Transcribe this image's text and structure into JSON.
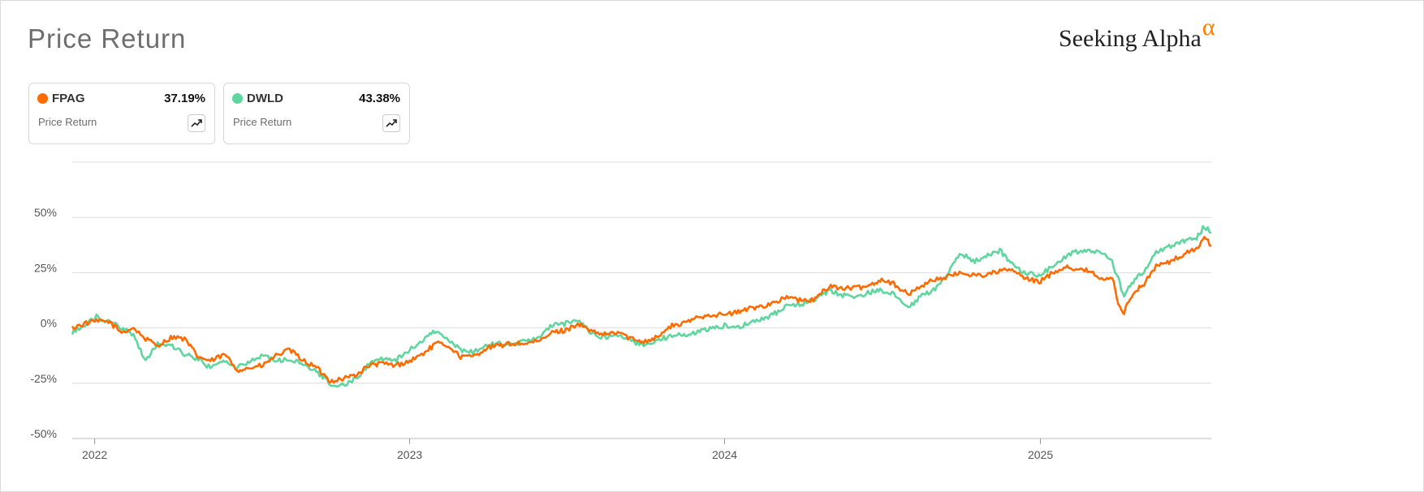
{
  "header": {
    "title": "Price Return",
    "logo_text": "Seeking Alpha",
    "logo_symbol": "α"
  },
  "legend_cards": [
    {
      "ticker": "FPAG",
      "value": "37.19%",
      "label": "Price Return",
      "color": "#ff6b00",
      "icon": "trend-up-icon"
    },
    {
      "ticker": "DWLD",
      "value": "43.38%",
      "label": "Price Return",
      "color": "#5fd6a0",
      "icon": "trend-up-icon"
    }
  ],
  "chart_data": {
    "type": "line",
    "title": "Price Return",
    "xlabel": "",
    "ylabel": "",
    "xlim": [
      "2021-12-06",
      "2025-07-18"
    ],
    "ylim": [
      -50,
      75
    ],
    "yticks": [
      -50,
      -25,
      0,
      25,
      50
    ],
    "ytick_labels": [
      "-50%",
      "-25%",
      "0%",
      "25%",
      "50%"
    ],
    "xticks": [
      "2022-01-01",
      "2023-01-01",
      "2024-01-01",
      "2025-01-01"
    ],
    "xtick_labels": [
      "2022",
      "2023",
      "2024",
      "2025"
    ],
    "grid": true,
    "series": [
      {
        "name": "FPAG",
        "color": "#ff6b00",
        "points": [
          [
            "2021-12-06",
            0
          ],
          [
            "2021-12-20",
            2
          ],
          [
            "2022-01-03",
            3
          ],
          [
            "2022-01-17",
            3
          ],
          [
            "2022-02-01",
            -2
          ],
          [
            "2022-02-15",
            0
          ],
          [
            "2022-03-01",
            -5
          ],
          [
            "2022-03-15",
            -8
          ],
          [
            "2022-04-01",
            -4
          ],
          [
            "2022-04-15",
            -5
          ],
          [
            "2022-05-01",
            -13
          ],
          [
            "2022-05-15",
            -15
          ],
          [
            "2022-06-01",
            -12
          ],
          [
            "2022-06-15",
            -19
          ],
          [
            "2022-07-01",
            -18
          ],
          [
            "2022-07-15",
            -17
          ],
          [
            "2022-08-01",
            -12
          ],
          [
            "2022-08-15",
            -10
          ],
          [
            "2022-09-01",
            -15
          ],
          [
            "2022-09-15",
            -18
          ],
          [
            "2022-10-01",
            -24
          ],
          [
            "2022-10-15",
            -23
          ],
          [
            "2022-11-01",
            -21
          ],
          [
            "2022-11-15",
            -17
          ],
          [
            "2022-12-01",
            -16
          ],
          [
            "2022-12-15",
            -17
          ],
          [
            "2023-01-01",
            -15
          ],
          [
            "2023-01-15",
            -12
          ],
          [
            "2023-02-01",
            -7
          ],
          [
            "2023-02-15",
            -8
          ],
          [
            "2023-03-01",
            -13
          ],
          [
            "2023-03-15",
            -13
          ],
          [
            "2023-04-01",
            -9
          ],
          [
            "2023-04-15",
            -8
          ],
          [
            "2023-05-01",
            -7
          ],
          [
            "2023-05-15",
            -7
          ],
          [
            "2023-06-01",
            -6
          ],
          [
            "2023-06-15",
            -2
          ],
          [
            "2023-07-01",
            -1
          ],
          [
            "2023-07-15",
            2
          ],
          [
            "2023-08-01",
            -2
          ],
          [
            "2023-08-15",
            -3
          ],
          [
            "2023-09-01",
            -2
          ],
          [
            "2023-09-15",
            -5
          ],
          [
            "2023-10-01",
            -6
          ],
          [
            "2023-10-15",
            -4
          ],
          [
            "2023-11-01",
            1
          ],
          [
            "2023-11-15",
            2
          ],
          [
            "2023-12-01",
            5
          ],
          [
            "2023-12-15",
            6
          ],
          [
            "2024-01-01",
            6
          ],
          [
            "2024-01-15",
            7
          ],
          [
            "2024-02-01",
            9
          ],
          [
            "2024-02-15",
            10
          ],
          [
            "2024-03-01",
            12
          ],
          [
            "2024-03-15",
            14
          ],
          [
            "2024-04-01",
            12
          ],
          [
            "2024-04-15",
            13
          ],
          [
            "2024-05-01",
            19
          ],
          [
            "2024-05-15",
            18
          ],
          [
            "2024-06-01",
            18
          ],
          [
            "2024-06-15",
            19
          ],
          [
            "2024-07-01",
            22
          ],
          [
            "2024-07-15",
            20
          ],
          [
            "2024-08-01",
            15
          ],
          [
            "2024-08-15",
            19
          ],
          [
            "2024-09-01",
            22
          ],
          [
            "2024-09-15",
            23
          ],
          [
            "2024-10-01",
            25
          ],
          [
            "2024-10-15",
            24
          ],
          [
            "2024-11-01",
            24
          ],
          [
            "2024-11-15",
            26
          ],
          [
            "2024-12-01",
            26
          ],
          [
            "2024-12-15",
            22
          ],
          [
            "2025-01-01",
            21
          ],
          [
            "2025-01-15",
            25
          ],
          [
            "2025-02-01",
            28
          ],
          [
            "2025-02-15",
            26
          ],
          [
            "2025-03-01",
            26
          ],
          [
            "2025-03-15",
            21
          ],
          [
            "2025-03-25",
            23
          ],
          [
            "2025-04-03",
            9
          ],
          [
            "2025-04-08",
            7
          ],
          [
            "2025-04-15",
            14
          ],
          [
            "2025-05-01",
            20
          ],
          [
            "2025-05-15",
            28
          ],
          [
            "2025-06-01",
            30
          ],
          [
            "2025-06-15",
            33
          ],
          [
            "2025-07-01",
            36
          ],
          [
            "2025-07-10",
            41
          ],
          [
            "2025-07-18",
            37
          ]
        ]
      },
      {
        "name": "DWLD",
        "color": "#5fd6a0",
        "points": [
          [
            "2021-12-06",
            -2
          ],
          [
            "2021-12-20",
            1
          ],
          [
            "2022-01-03",
            5
          ],
          [
            "2022-01-17",
            3
          ],
          [
            "2022-02-01",
            0
          ],
          [
            "2022-02-15",
            -3
          ],
          [
            "2022-03-01",
            -15
          ],
          [
            "2022-03-15",
            -7
          ],
          [
            "2022-04-01",
            -8
          ],
          [
            "2022-04-15",
            -12
          ],
          [
            "2022-05-01",
            -14
          ],
          [
            "2022-05-15",
            -18
          ],
          [
            "2022-06-01",
            -15
          ],
          [
            "2022-06-15",
            -18
          ],
          [
            "2022-07-01",
            -15
          ],
          [
            "2022-07-15",
            -12
          ],
          [
            "2022-08-01",
            -15
          ],
          [
            "2022-08-15",
            -14
          ],
          [
            "2022-09-01",
            -17
          ],
          [
            "2022-09-15",
            -20
          ],
          [
            "2022-10-01",
            -25
          ],
          [
            "2022-10-15",
            -26
          ],
          [
            "2022-11-01",
            -23
          ],
          [
            "2022-11-15",
            -16
          ],
          [
            "2022-12-01",
            -14
          ],
          [
            "2022-12-15",
            -15
          ],
          [
            "2023-01-01",
            -10
          ],
          [
            "2023-01-15",
            -6
          ],
          [
            "2023-02-01",
            -1
          ],
          [
            "2023-02-15",
            -5
          ],
          [
            "2023-03-01",
            -10
          ],
          [
            "2023-03-15",
            -11
          ],
          [
            "2023-04-01",
            -8
          ],
          [
            "2023-04-15",
            -7
          ],
          [
            "2023-05-01",
            -8
          ],
          [
            "2023-05-15",
            -6
          ],
          [
            "2023-06-01",
            -4
          ],
          [
            "2023-06-15",
            1
          ],
          [
            "2023-07-01",
            2
          ],
          [
            "2023-07-15",
            4
          ],
          [
            "2023-08-01",
            -3
          ],
          [
            "2023-08-15",
            -4
          ],
          [
            "2023-09-01",
            -3
          ],
          [
            "2023-09-15",
            -6
          ],
          [
            "2023-10-01",
            -8
          ],
          [
            "2023-10-15",
            -5
          ],
          [
            "2023-11-01",
            -4
          ],
          [
            "2023-11-15",
            -3
          ],
          [
            "2023-12-01",
            -2
          ],
          [
            "2023-12-15",
            0
          ],
          [
            "2024-01-01",
            1
          ],
          [
            "2024-01-15",
            0
          ],
          [
            "2024-02-01",
            3
          ],
          [
            "2024-02-15",
            4
          ],
          [
            "2024-03-01",
            7
          ],
          [
            "2024-03-15",
            10
          ],
          [
            "2024-04-01",
            11
          ],
          [
            "2024-04-15",
            13
          ],
          [
            "2024-05-01",
            17
          ],
          [
            "2024-05-15",
            15
          ],
          [
            "2024-06-01",
            14
          ],
          [
            "2024-06-15",
            16
          ],
          [
            "2024-07-01",
            17
          ],
          [
            "2024-07-15",
            15
          ],
          [
            "2024-08-01",
            9
          ],
          [
            "2024-08-15",
            14
          ],
          [
            "2024-09-01",
            18
          ],
          [
            "2024-09-15",
            24
          ],
          [
            "2024-10-01",
            34
          ],
          [
            "2024-10-15",
            30
          ],
          [
            "2024-11-01",
            33
          ],
          [
            "2024-11-15",
            35
          ],
          [
            "2024-12-01",
            28
          ],
          [
            "2024-12-15",
            25
          ],
          [
            "2025-01-01",
            24
          ],
          [
            "2025-01-15",
            28
          ],
          [
            "2025-02-01",
            33
          ],
          [
            "2025-02-15",
            35
          ],
          [
            "2025-03-01",
            35
          ],
          [
            "2025-03-15",
            33
          ],
          [
            "2025-03-25",
            30
          ],
          [
            "2025-04-03",
            20
          ],
          [
            "2025-04-08",
            14
          ],
          [
            "2025-04-15",
            19
          ],
          [
            "2025-05-01",
            26
          ],
          [
            "2025-05-15",
            34
          ],
          [
            "2025-06-01",
            37
          ],
          [
            "2025-06-15",
            39
          ],
          [
            "2025-07-01",
            41
          ],
          [
            "2025-07-10",
            46
          ],
          [
            "2025-07-18",
            43
          ]
        ]
      }
    ]
  }
}
